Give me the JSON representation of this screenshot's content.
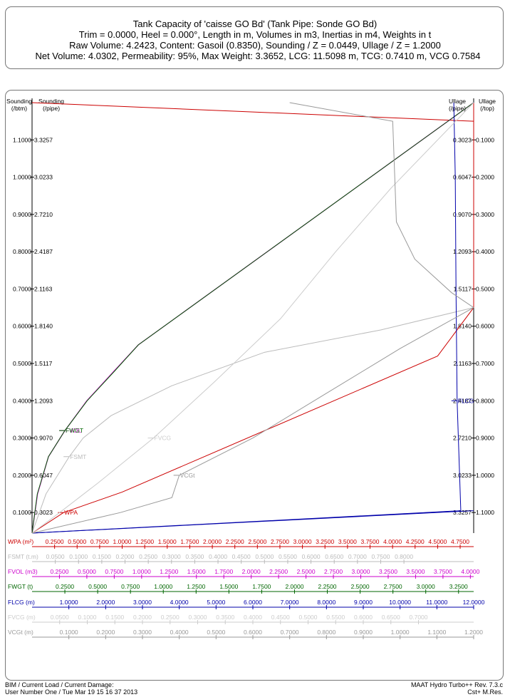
{
  "header": {
    "line1": "Tank Capacity of 'caisse GO Bd' (Tank Pipe: Sonde GO Bd)",
    "line2": "Trim = 0.0000, Heel = 0.000°, Length in m, Volumes  in m3, Inertias in m4, Weights in t",
    "line3": "Raw Volume: 4.2423, Content: Gasoil (0.8350), Sounding / Z = 0.0449, Ullage / Z = 1.2000",
    "line4": "Net Volume: 4.0302, Permeability: 95%, Max Weight: 3.3652, LCG: 11.5098 m, TCG: 0.7410 m, VCG 0.7584"
  },
  "footer": {
    "left1": "BIM / Current Load / Current Damage:",
    "left2": "User Number One / Tue Mar 19 15 16 37 2013",
    "right1": "MAAT Hydro Turbo++ Rev. 7.3.c",
    "right2": "Cst+ M.Res."
  },
  "colors": {
    "WPA": "#cc0000",
    "FSMT": "#bbbbbb",
    "FVOL": "#cc00cc",
    "FWGT": "#006600",
    "FLCG": "#0000aa",
    "FVCG": "#cccccc",
    "VCGt": "#999999"
  },
  "chart_data": {
    "type": "line",
    "left_axis_headers": [
      "Sounding\n(/btm)",
      "Sounding\n(/pipe)"
    ],
    "right_axis_headers": [
      "Ullage\n(/pipe)",
      "Ullage\n(/top)"
    ],
    "y_ticks": [
      {
        "btm": "0.1000",
        "pipe": "0.3023",
        "ul_pipe": "3.3257",
        "ul_top": "1.1000"
      },
      {
        "btm": "0.2000",
        "pipe": "0.6047",
        "ul_pipe": "3.0233",
        "ul_top": "1.0000"
      },
      {
        "btm": "0.3000",
        "pipe": "0.9070",
        "ul_pipe": "2.7210",
        "ul_top": "0.9000"
      },
      {
        "btm": "0.4000",
        "pipe": "1.2093",
        "ul_pipe": "2.4187",
        "ul_top": "0.8000"
      },
      {
        "btm": "0.5000",
        "pipe": "1.5117",
        "ul_pipe": "2.1163",
        "ul_top": "0.7000"
      },
      {
        "btm": "0.6000",
        "pipe": "1.8140",
        "ul_pipe": "1.8140",
        "ul_top": "0.6000"
      },
      {
        "btm": "0.7000",
        "pipe": "2.1163",
        "ul_pipe": "1.5117",
        "ul_top": "0.5000"
      },
      {
        "btm": "0.8000",
        "pipe": "2.4187",
        "ul_pipe": "1.2093",
        "ul_top": "0.4000"
      },
      {
        "btm": "0.9000",
        "pipe": "2.7210",
        "ul_pipe": "0.9070",
        "ul_top": "0.3000"
      },
      {
        "btm": "1.0000",
        "pipe": "3.0233",
        "ul_pipe": "0.6047",
        "ul_top": "0.2000"
      },
      {
        "btm": "1.1000",
        "pipe": "3.3257",
        "ul_pipe": "0.3023",
        "ul_top": "0.1000"
      }
    ],
    "ylim": [
      0.0449,
      1.2
    ],
    "x_axes": [
      {
        "key": "WPA",
        "label": "WPA (m²)",
        "min": 0,
        "max": 4.9,
        "ticks": [
          "0.2500",
          "0.5000",
          "0.7500",
          "1.0000",
          "1.2500",
          "1.5000",
          "1.7500",
          "2.0000",
          "2.2500",
          "2.5000",
          "2.7500",
          "3.0000",
          "3.2500",
          "3.5000",
          "3.7500",
          "4.0000",
          "4.2500",
          "4.5000",
          "4.7500"
        ]
      },
      {
        "key": "FSMT",
        "label": "FSMT (t.m)",
        "min": 0,
        "max": 0.95,
        "ticks": [
          "0.0500",
          "0.1000",
          "0.1500",
          "0.2000",
          "0.2500",
          "0.3000",
          "0.3500",
          "0.4000",
          "0.4500",
          "0.5000",
          "0.5500",
          "0.6000",
          "0.6500",
          "0.7000",
          "0.7500",
          "0.8000"
        ]
      },
      {
        "key": "FVOL",
        "label": "FVOL (m3)",
        "min": 0,
        "max": 4.0302,
        "ticks": [
          "0.2500",
          "0.5000",
          "0.7500",
          "1.0000",
          "1.2500",
          "1.5000",
          "1.7500",
          "2.0000",
          "2.2500",
          "2.5000",
          "2.7500",
          "3.0000",
          "3.2500",
          "3.5000",
          "3.7500",
          "4.0000"
        ]
      },
      {
        "key": "FWGT",
        "label": "FWGT (t)",
        "min": 0,
        "max": 3.3652,
        "ticks": [
          "0.2500",
          "0.5000",
          "0.7500",
          "1.0000",
          "1.2500",
          "1.5000",
          "1.7500",
          "2.0000",
          "2.2500",
          "2.5000",
          "2.7500",
          "3.0000",
          "3.2500"
        ]
      },
      {
        "key": "FLCG",
        "label": "FLCG (m)",
        "min": 0,
        "max": 12.0,
        "ticks": [
          "1.0000",
          "2.0000",
          "3.0000",
          "4.0000",
          "5.0000",
          "6.0000",
          "7.0000",
          "8.0000",
          "9.0000",
          "10.0000",
          "11.0000",
          "12.0000"
        ]
      },
      {
        "key": "FVCG",
        "label": "FVCG (m)",
        "min": 0,
        "max": 0.8,
        "ticks": [
          "0.0500",
          "0.1000",
          "0.1500",
          "0.2000",
          "0.2500",
          "0.3000",
          "0.3500",
          "0.4000",
          "0.4500",
          "0.5000",
          "0.5500",
          "0.6000",
          "0.6500",
          "0.7000"
        ]
      },
      {
        "key": "VCGt",
        "label": "VCGt (m)",
        "min": 0,
        "max": 1.2,
        "ticks": [
          "0.1000",
          "0.2000",
          "0.3000",
          "0.4000",
          "0.5000",
          "0.6000",
          "0.7000",
          "0.8000",
          "0.9000",
          "1.0000",
          "1.1000",
          "1.2000"
        ]
      }
    ],
    "series": [
      {
        "name": "WPA",
        "axis": "WPA",
        "label_at": 1,
        "points": [
          [
            0,
            0.0449
          ],
          [
            0.35,
            0.1
          ],
          [
            1.0,
            0.155
          ],
          [
            4.5,
            0.52
          ],
          [
            4.9,
            0.65
          ],
          [
            4.9,
            1.2
          ]
        ]
      },
      {
        "name": "FSMT",
        "axis": "FSMT",
        "label_at": 2,
        "points": [
          [
            0,
            0.0449
          ],
          [
            0.03,
            0.15
          ],
          [
            0.08,
            0.25
          ],
          [
            0.11,
            0.3
          ],
          [
            0.17,
            0.36
          ],
          [
            0.3,
            0.44
          ],
          [
            0.5,
            0.53
          ],
          [
            0.75,
            0.59
          ],
          [
            0.95,
            0.65
          ]
        ]
      },
      {
        "name": "FVOL",
        "axis": "FVOL",
        "label_at": 3,
        "points": [
          [
            0,
            0.0449
          ],
          [
            0.05,
            0.15
          ],
          [
            0.15,
            0.25
          ],
          [
            0.3,
            0.32
          ],
          [
            0.5,
            0.4
          ],
          [
            0.75,
            0.48
          ],
          [
            0.97,
            0.55
          ],
          [
            4.0302,
            1.2
          ]
        ]
      },
      {
        "name": "FWGT",
        "axis": "FWGT",
        "label_at": 3,
        "points": [
          [
            0,
            0.0449
          ],
          [
            0.04,
            0.15
          ],
          [
            0.125,
            0.25
          ],
          [
            0.25,
            0.32
          ],
          [
            0.42,
            0.4
          ],
          [
            0.63,
            0.48
          ],
          [
            0.81,
            0.55
          ],
          [
            3.3652,
            1.2
          ]
        ]
      },
      {
        "name": "FLCG",
        "axis": "FLCG",
        "label_at": 2,
        "points": [
          [
            0,
            0.0449
          ],
          [
            11.65,
            0.105
          ],
          [
            11.55,
            0.4
          ],
          [
            11.52,
            0.7
          ],
          [
            11.5,
            1.0
          ],
          [
            11.46,
            1.2
          ]
        ]
      },
      {
        "name": "FVCG",
        "axis": "FVCG",
        "label_at": 3,
        "points": [
          [
            0,
            0.0449
          ],
          [
            0.05,
            0.1
          ],
          [
            0.12,
            0.18
          ],
          [
            0.22,
            0.3
          ],
          [
            0.33,
            0.45
          ],
          [
            0.45,
            0.62
          ],
          [
            0.55,
            0.8
          ],
          [
            0.65,
            0.97
          ],
          [
            0.8,
            1.2
          ]
        ]
      },
      {
        "name": "VCGt",
        "axis": "VCGt",
        "label_at": 3,
        "points": [
          [
            0,
            0.0449
          ],
          [
            0.24,
            0.1
          ],
          [
            0.38,
            0.14
          ],
          [
            0.4,
            0.2
          ],
          [
            0.6,
            0.3
          ],
          [
            0.8,
            0.42
          ],
          [
            1.0,
            0.54
          ],
          [
            1.2,
            0.65
          ],
          [
            1.14,
            0.69
          ],
          [
            1.04,
            0.78
          ],
          [
            0.99,
            0.88
          ],
          [
            0.98,
            1.15
          ],
          [
            0.7,
            1.2
          ]
        ]
      }
    ],
    "outline": [
      [
        0,
        0.0449
      ],
      [
        1,
        0.105
      ],
      [
        1,
        1.15
      ],
      [
        0,
        1.2
      ]
    ]
  }
}
